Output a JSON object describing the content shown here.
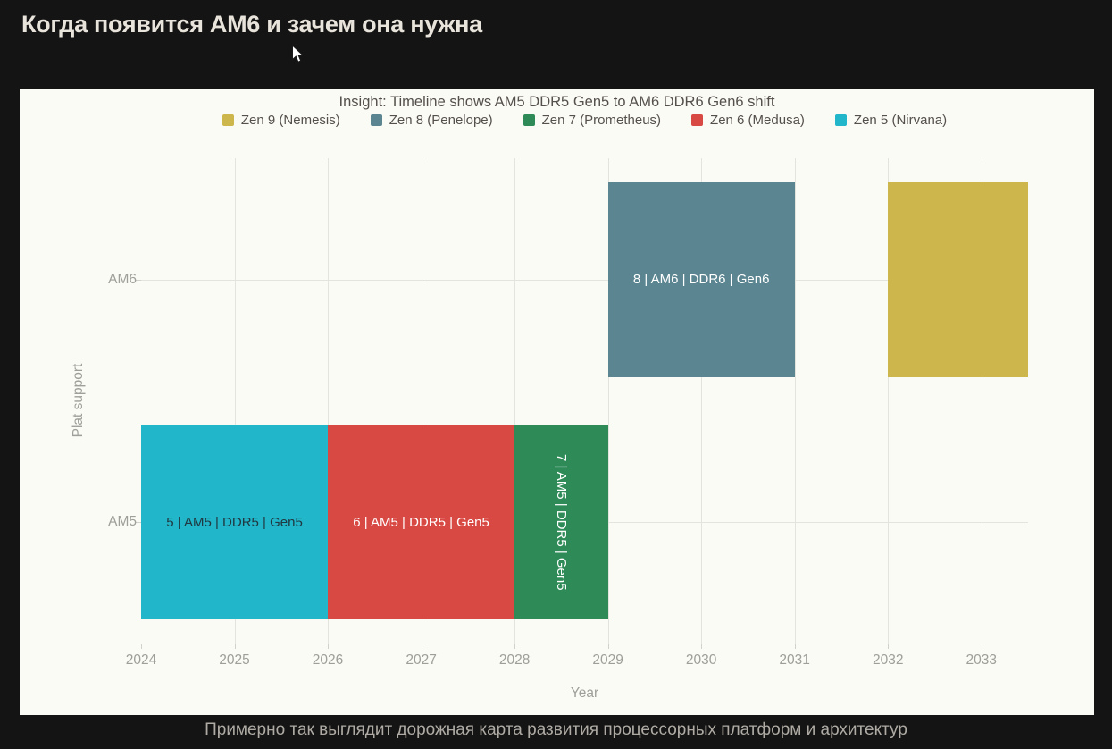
{
  "page": {
    "title": "Когда появится AM6 и зачем она нужна",
    "caption": "Примерно так выглядит дорожная карта развития процессорных платформ и архитектур"
  },
  "colors": {
    "page_bg": "#141414",
    "page_title": "#E9E4DB",
    "caption": "#AFABA4",
    "card_bg": "#FBFBF5",
    "grid": "#E4E4DF",
    "tick": "#D2D2CD",
    "axis_text": "#9E9E9A",
    "chart_text": "#55504B"
  },
  "chart_data": {
    "type": "bar",
    "subtype": "timeline-gantt",
    "title": "Insight: Timeline shows AM5 DDR5 Gen5 to AM6 DDR6 Gen6 shift",
    "xlabel": "Year",
    "ylabel": "Plat support",
    "x_ticks": [
      2024,
      2025,
      2026,
      2027,
      2028,
      2029,
      2030,
      2031,
      2032,
      2033
    ],
    "xlim": [
      2024,
      2033.5
    ],
    "y_categories": [
      "AM5",
      "AM6"
    ],
    "grid": true,
    "legend_position": "top-center",
    "legend": [
      {
        "label": "Zen 9 (Nemesis)",
        "color": "#CDB74C"
      },
      {
        "label": "Zen 8 (Penelope)",
        "color": "#5B8590"
      },
      {
        "label": "Zen 7 (Prometheus)",
        "color": "#2E8B57"
      },
      {
        "label": "Zen 6 (Medusa)",
        "color": "#D94944"
      },
      {
        "label": "Zen 5 (Nirvana)",
        "color": "#21B6C9"
      }
    ],
    "series": [
      {
        "name": "Zen 5 (Nirvana)",
        "row": "AM5",
        "start": 2024,
        "end": 2026,
        "color": "#21B6C9",
        "bar_label": "5 | AM5 | DDR5 | Gen5",
        "label_color": "#203841",
        "label_rotated": false
      },
      {
        "name": "Zen 6 (Medusa)",
        "row": "AM5",
        "start": 2026,
        "end": 2028,
        "color": "#D94944",
        "bar_label": "6 | AM5 | DDR5 | Gen5",
        "label_color": "#FFFFFF",
        "label_rotated": false
      },
      {
        "name": "Zen 7 (Prometheus)",
        "row": "AM5",
        "start": 2028,
        "end": 2029,
        "color": "#2E8B57",
        "bar_label": "7 | AM5 | DDR5 | Gen5",
        "label_color": "#FFFFFF",
        "label_rotated": true
      },
      {
        "name": "Zen 8 (Penelope)",
        "row": "AM6",
        "start": 2029,
        "end": 2031,
        "color": "#5B8590",
        "bar_label": "8 | AM6 | DDR6 | Gen6",
        "label_color": "#FFFFFF",
        "label_rotated": false
      },
      {
        "name": "Zen 9 (Nemesis)",
        "row": "AM6",
        "start": 2032,
        "end": 2033.5,
        "color": "#CDB74C",
        "bar_label": "",
        "label_color": "#FFFFFF",
        "label_rotated": false
      }
    ]
  }
}
